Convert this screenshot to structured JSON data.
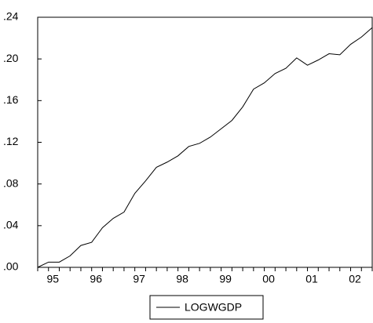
{
  "chart_data": {
    "type": "line",
    "categories": [
      "95",
      null,
      null,
      null,
      "96",
      null,
      null,
      null,
      "97",
      null,
      null,
      null,
      "98",
      null,
      null,
      null,
      "99",
      null,
      null,
      null,
      "00",
      null,
      null,
      null,
      "01",
      null,
      null,
      null,
      "02",
      null,
      null,
      null
    ],
    "series": [
      {
        "name": "LOGWGDP",
        "color": "#000000",
        "values": [
          0.0,
          0.005,
          0.005,
          0.011,
          0.021,
          0.024,
          0.038,
          0.047,
          0.053,
          0.071,
          0.083,
          0.096,
          0.101,
          0.107,
          0.116,
          0.119,
          0.125,
          0.133,
          0.141,
          0.154,
          0.171,
          0.177,
          0.186,
          0.191,
          0.201,
          0.194,
          0.199,
          0.205,
          0.204,
          0.214,
          0.221,
          0.23
        ]
      }
    ],
    "ylim": [
      0,
      0.24
    ],
    "yticks": [
      {
        "value": 0,
        "label": ".00"
      },
      {
        "value": 0.04,
        "label": ".04"
      },
      {
        "value": 0.08,
        "label": ".08"
      },
      {
        "value": 0.12,
        "label": ".12"
      },
      {
        "value": 0.16,
        "label": ".16"
      },
      {
        "value": 0.2,
        "label": ".20"
      },
      {
        "value": 0.24,
        "label": ".24"
      }
    ],
    "grid": false
  }
}
